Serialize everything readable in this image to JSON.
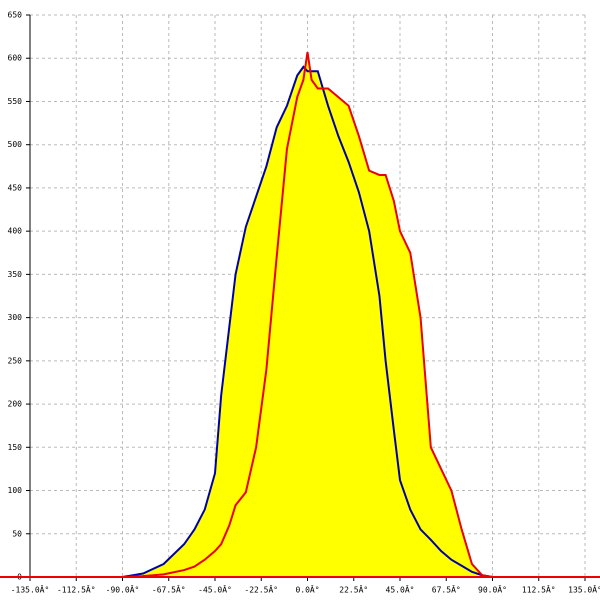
{
  "chart_data": {
    "type": "line",
    "x": [
      -90,
      -80,
      -70,
      -60,
      -55,
      -50,
      -45,
      -42,
      -38,
      -35,
      -30,
      -25,
      -20,
      -15,
      -10,
      -5,
      -2,
      0,
      2,
      5,
      10,
      15,
      20,
      25,
      30,
      35,
      38,
      42,
      45,
      50,
      55,
      60,
      65,
      70,
      75,
      80,
      85,
      90
    ],
    "series": [
      {
        "color": "#0000aa",
        "values": [
          0,
          4,
          15,
          38,
          55,
          78,
          120,
          210,
          290,
          350,
          405,
          440,
          475,
          520,
          545,
          580,
          590,
          585,
          585,
          585,
          545,
          510,
          480,
          445,
          400,
          325,
          250,
          170,
          112,
          78,
          55,
          43,
          30,
          20,
          13,
          6,
          2,
          0
        ]
      },
      {
        "color": "#ee0000",
        "values": [
          0,
          1,
          3,
          8,
          12,
          20,
          30,
          38,
          60,
          83,
          98,
          150,
          240,
          370,
          495,
          555,
          575,
          607,
          575,
          565,
          565,
          555,
          545,
          510,
          470,
          465,
          465,
          435,
          400,
          375,
          300,
          150,
          125,
          100,
          55,
          15,
          2,
          0
        ]
      }
    ],
    "fill_color": "#ffff00",
    "grid": true,
    "xlim": [
      -135,
      135
    ],
    "xticks": [
      {
        "value": -135,
        "label": "-135.0Â°"
      },
      {
        "value": -112.5,
        "label": "-112.5Â°"
      },
      {
        "value": -90,
        "label": "-90.0Â°"
      },
      {
        "value": -67.5,
        "label": "-67.5Â°"
      },
      {
        "value": -45,
        "label": "-45.0Â°"
      },
      {
        "value": -22.5,
        "label": "-22.5Â°"
      },
      {
        "value": 0,
        "label": "0.0Â°"
      },
      {
        "value": 22.5,
        "label": "22.5Â°"
      },
      {
        "value": 45,
        "label": "45.0Â°"
      },
      {
        "value": 67.5,
        "label": "67.5Â°"
      },
      {
        "value": 90,
        "label": "90.0Â°"
      },
      {
        "value": 112.5,
        "label": "112.5Â°"
      },
      {
        "value": 135,
        "label": "135.0Â°"
      }
    ],
    "ylim": [
      0,
      650
    ],
    "yticks": [
      0,
      50,
      100,
      150,
      200,
      250,
      300,
      350,
      400,
      450,
      500,
      550,
      600,
      650
    ]
  }
}
